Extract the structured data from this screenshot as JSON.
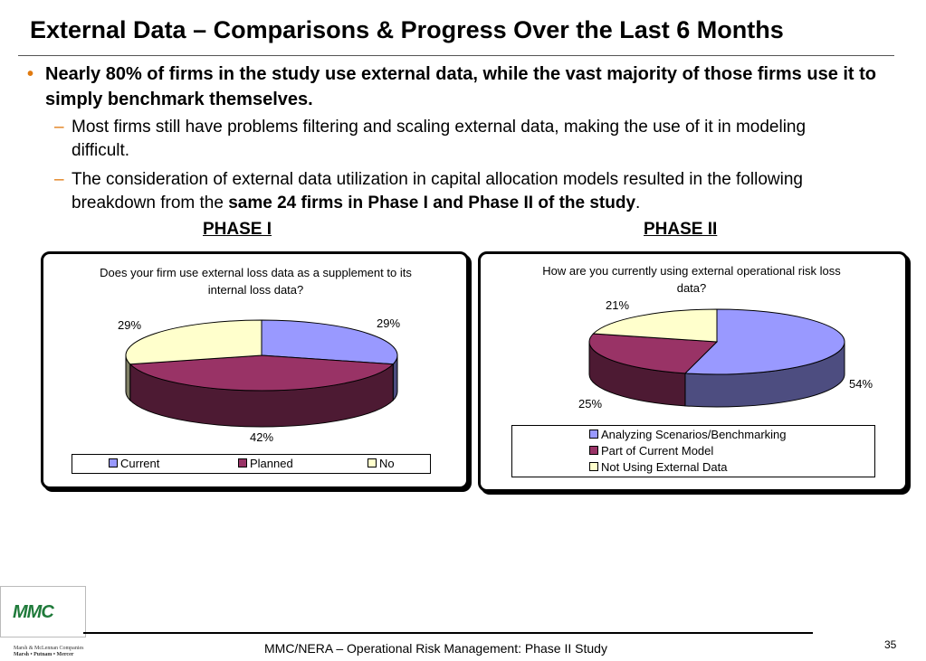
{
  "title": "External Data – Comparisons & Progress Over the Last 6 Months",
  "bullet": {
    "marker": "•",
    "text": "Nearly 80% of firms in the study use external data, while the vast majority of those firms use it to simply benchmark themselves."
  },
  "sub_bullets": {
    "marker": "–",
    "first": "Most firms still have problems filtering and scaling external data, making the use of it in modeling difficult.",
    "second_before": "The consideration of external data utilization in capital allocation models resulted in the following breakdown from the ",
    "second_bold": "same 24 firms in Phase I and Phase II of the study",
    "second_after": "."
  },
  "phase1": {
    "heading": "PHASE I",
    "question": "Does your firm use external loss data as a supplement to its internal loss data?"
  },
  "phase2": {
    "heading": "PHASE II",
    "question": "How are you currently using external operational risk loss data?"
  },
  "chart_data": [
    {
      "type": "pie",
      "title": "Does your firm use external loss data as a supplement to its internal loss data?",
      "labels": [
        "Current",
        "Planned",
        "No"
      ],
      "values": [
        29,
        42,
        29
      ],
      "value_labels": [
        "29%",
        "42%",
        "29%"
      ],
      "colors": [
        "#9999ff",
        "#993366",
        "#ffffcc"
      ],
      "legend": "bottom"
    },
    {
      "type": "pie",
      "title": "How are you currently using external operational risk loss data?",
      "labels": [
        "Analyzing Scenarios/Benchmarking",
        "Part of Current Model",
        "Not Using External Data"
      ],
      "values": [
        54,
        25,
        21
      ],
      "value_labels": [
        "54%",
        "25%",
        "21%"
      ],
      "colors": [
        "#9999ff",
        "#993366",
        "#ffffcc"
      ],
      "legend": "bottom"
    }
  ],
  "logo": {
    "text": "MMC",
    "line1": "Marsh & McLennan Companies",
    "line2": "Marsh • Putnam • Mercer"
  },
  "footer": "MMC/NERA – Operational Risk Management: Phase II Study",
  "page_number": "35"
}
